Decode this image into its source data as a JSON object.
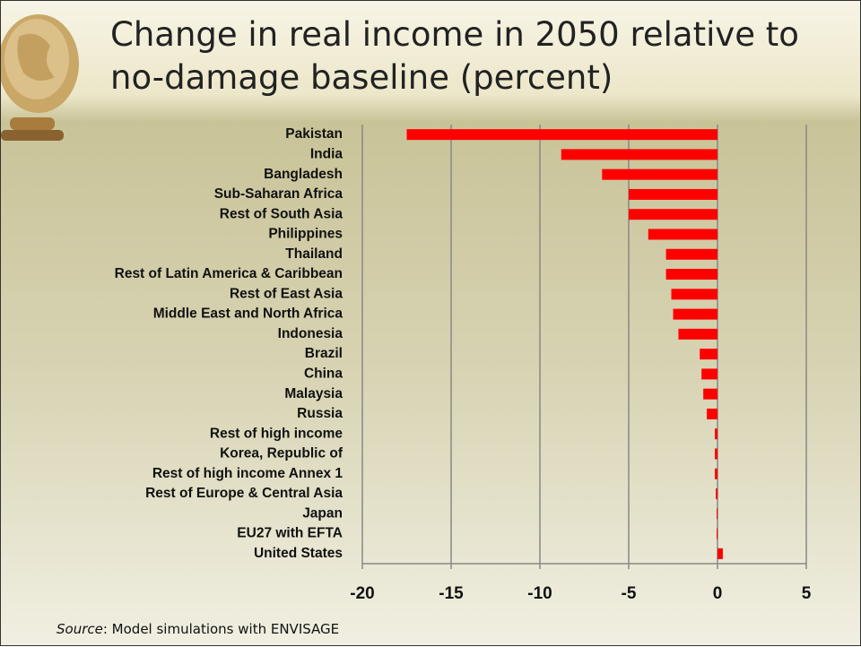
{
  "chart_data": {
    "type": "bar",
    "orientation": "horizontal",
    "title": "Change in real income in 2050 relative to no-damage baseline (percent)",
    "categories": [
      "Pakistan",
      "India",
      "Bangladesh",
      "Sub-Saharan Africa",
      "Rest of South Asia",
      "Philippines",
      "Thailand",
      "Rest of Latin America & Caribbean",
      "Rest of East Asia",
      "Middle East and North Africa",
      "Indonesia",
      "Brazil",
      "China",
      "Malaysia",
      "Russia",
      "Rest of high income",
      "Korea, Republic of",
      "Rest of high income Annex 1",
      "Rest of Europe & Central Asia",
      "Japan",
      "EU27 with EFTA",
      "United States"
    ],
    "values": [
      -17.5,
      -8.8,
      -6.5,
      -5.0,
      -5.0,
      -3.9,
      -2.9,
      -2.9,
      -2.6,
      -2.5,
      -2.2,
      -1.0,
      -0.9,
      -0.8,
      -0.6,
      -0.15,
      -0.15,
      -0.15,
      -0.1,
      -0.05,
      -0.05,
      0.3
    ],
    "color": "#ff0000",
    "xlim": [
      -20,
      5
    ],
    "xticks": [
      -20,
      -15,
      -10,
      -5,
      0,
      5
    ],
    "grid": true,
    "source_label": "Source",
    "source_text": ": Model simulations with ENVISAGE"
  }
}
